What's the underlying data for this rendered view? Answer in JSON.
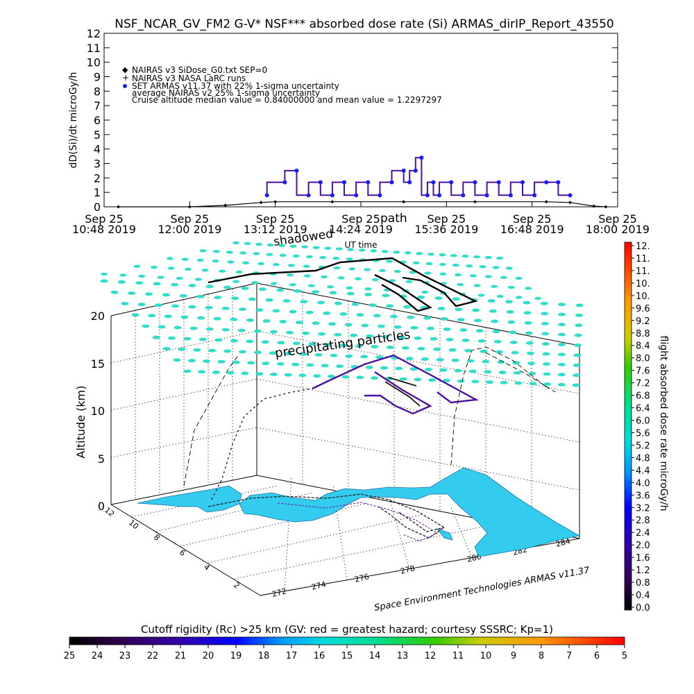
{
  "title": "NSF_NCAR_GV_FM2 G-V* NSF*** absorbed dose rate (Si) ARMAS_dirIP_Report_43550",
  "top_chart": {
    "ylabel": "dD(Si)/dt microGy/h",
    "xlabel": "UT time",
    "y_ticks": [
      "0",
      "1",
      "2",
      "3",
      "4",
      "5",
      "6",
      "7",
      "8",
      "9",
      "10",
      "11",
      "12"
    ],
    "x_ticks": [
      {
        "top": "Sep 25",
        "bottom": "10:48 2019"
      },
      {
        "top": "Sep 25",
        "bottom": "12:00 2019"
      },
      {
        "top": "Sep 25",
        "bottom": "13:12 2019"
      },
      {
        "top": "Sep 25",
        "bottom": "14:24 2019"
      },
      {
        "top": "Sep 25",
        "bottom": "15:36 2019"
      },
      {
        "top": "Sep 25",
        "bottom": "16:48 2019"
      },
      {
        "top": "Sep 25",
        "bottom": "18:00 2019"
      }
    ],
    "legend": [
      "NAIRAS v3 SiDose_G0.txt SEP=0",
      "NAIRAS v3 NASA LaRC runs",
      "SET ARMAS v11.37 with 22% 1-sigma uncertainty",
      "average NAIRAS v2 25% 1-sigma uncertainty",
      "Cruise altitude median value = 0.84000000 and mean value = 1.2297297"
    ],
    "overlay_labels": [
      "shadowed",
      "path"
    ]
  },
  "scene3d": {
    "zlabel": "Altitude (km)",
    "z_ticks": [
      "0",
      "5",
      "10",
      "15",
      "20"
    ],
    "lon_ticks": [
      "272",
      "274",
      "276",
      "278",
      "280",
      "282",
      "284"
    ],
    "lat_ticks": [
      "2",
      "4",
      "6",
      "8",
      "10",
      "12"
    ],
    "annotation": "precipitating particles",
    "credit": "Space Environment Technologies ARMAS v11.37",
    "land_color": "#33ccee",
    "grid_marker_color": "#33ddcc"
  },
  "colorbar_right": {
    "label": "flight absorbed dose rate microGy/h",
    "ticks": [
      "12.",
      "11.",
      "11.",
      "10.",
      "10.",
      "9.6",
      "9.2",
      "8.8",
      "8.4",
      "8.0",
      "7.6",
      "7.2",
      "6.8",
      "6.4",
      "6.0",
      "5.6",
      "5.2",
      "4.8",
      "4.4",
      "4.0",
      "3.6",
      "3.2",
      "2.8",
      "2.4",
      "2.0",
      "1.6",
      "1.2",
      "0.8",
      "0.4",
      "0.0"
    ]
  },
  "colorbar_bottom": {
    "label": "Cutoff rigidity (Rc) >25 km (GV: red = greatest hazard; courtesy SSSRC; Kp=1)",
    "ticks": [
      "25",
      "24",
      "23",
      "22",
      "21",
      "20",
      "19",
      "18",
      "17",
      "16",
      "15",
      "14",
      "13",
      "12",
      "11",
      "10",
      "9",
      "8",
      "7",
      "6",
      "5"
    ]
  },
  "chart_data": {
    "type": "line",
    "x_unit": "UT time, Sep 25 2019",
    "xlim": [
      "10:48",
      "18:00"
    ],
    "ylim": [
      0,
      12
    ],
    "series": [
      {
        "name": "NAIRAS v3 SiDose_G0.txt SEP=0",
        "color": "#000000",
        "x": [
          "11:00",
          "12:00",
          "12:30",
          "13:00",
          "13:12",
          "14:00",
          "15:00",
          "16:00",
          "17:00",
          "17:20",
          "17:40",
          "17:50"
        ],
        "y": [
          0.0,
          0.0,
          0.1,
          0.3,
          0.35,
          0.35,
          0.35,
          0.35,
          0.35,
          0.3,
          0.05,
          0.0
        ]
      },
      {
        "name": "SET ARMAS v11.37 with 22% 1-sigma uncertainty",
        "color": "#1a1aff",
        "x": [
          "13:05",
          "13:20",
          "13:30",
          "13:40",
          "13:50",
          "14:00",
          "14:10",
          "14:20",
          "14:30",
          "14:40",
          "14:50",
          "15:00",
          "15:05",
          "15:10",
          "15:15",
          "15:20",
          "15:25",
          "15:30",
          "15:40",
          "15:50",
          "16:00",
          "16:10",
          "16:20",
          "16:30",
          "16:40",
          "16:50",
          "17:00",
          "17:10",
          "17:20"
        ],
        "y": [
          0.8,
          1.7,
          2.5,
          0.8,
          1.7,
          0.8,
          1.7,
          0.8,
          1.7,
          0.8,
          1.7,
          2.5,
          1.7,
          2.5,
          3.4,
          0.8,
          1.7,
          0.8,
          1.7,
          0.8,
          1.7,
          0.8,
          1.7,
          0.8,
          1.7,
          0.8,
          1.7,
          1.7,
          0.8
        ]
      }
    ]
  }
}
